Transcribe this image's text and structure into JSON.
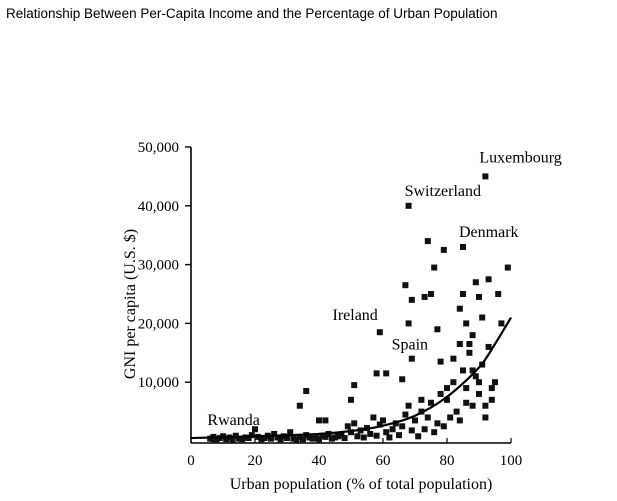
{
  "page": {
    "title": "Relationship Between Per-Capita Income and the Percentage of Urban Population"
  },
  "chart_data": {
    "type": "scatter",
    "title": "",
    "xlabel": "Urban population (% of total population)",
    "ylabel": "GNI per capita (U.S. $)",
    "xlim": [
      0,
      100
    ],
    "ylim": [
      0,
      50000
    ],
    "xticks": [
      0,
      20,
      40,
      60,
      80,
      100
    ],
    "yticks": [
      10000,
      20000,
      30000,
      40000,
      50000
    ],
    "xtick_labels": [
      "0",
      "20",
      "40",
      "60",
      "80",
      "100"
    ],
    "ytick_labels": [
      "10,000",
      "20,000",
      "30,000",
      "40,000",
      "50,000"
    ],
    "grid": false,
    "marker_color": "#111111",
    "series": [
      {
        "points": [
          [
            6,
            400
          ],
          [
            7,
            700
          ],
          [
            8,
            300
          ],
          [
            9,
            500
          ],
          [
            10,
            800
          ],
          [
            11,
            300
          ],
          [
            12,
            600
          ],
          [
            13,
            200
          ],
          [
            14,
            900
          ],
          [
            15,
            400
          ],
          [
            16,
            300
          ],
          [
            17,
            600
          ],
          [
            18,
            500
          ],
          [
            19,
            1000
          ],
          [
            20,
            2000
          ],
          [
            21,
            700
          ],
          [
            22,
            300
          ],
          [
            23,
            500
          ],
          [
            24,
            900
          ],
          [
            25,
            400
          ],
          [
            26,
            1200
          ],
          [
            27,
            600
          ],
          [
            28,
            300
          ],
          [
            29,
            800
          ],
          [
            30,
            500
          ],
          [
            31,
            1500
          ],
          [
            32,
            400
          ],
          [
            33,
            200
          ],
          [
            34,
            700
          ],
          [
            35,
            300
          ],
          [
            36,
            1000
          ],
          [
            37,
            600
          ],
          [
            38,
            400
          ],
          [
            39,
            500
          ],
          [
            40,
            300
          ],
          [
            41,
            900
          ],
          [
            42,
            700
          ],
          [
            43,
            1200
          ],
          [
            44,
            400
          ],
          [
            45,
            600
          ],
          [
            46,
            800
          ],
          [
            47,
            1100
          ],
          [
            48,
            500
          ],
          [
            49,
            2500
          ],
          [
            50,
            1500
          ],
          [
            51,
            3000
          ],
          [
            52,
            800
          ],
          [
            53,
            1800
          ],
          [
            54,
            600
          ],
          [
            55,
            2200
          ],
          [
            56,
            1200
          ],
          [
            57,
            4000
          ],
          [
            58,
            900
          ],
          [
            59,
            2800
          ],
          [
            60,
            3500
          ],
          [
            61,
            1500
          ],
          [
            62,
            600
          ],
          [
            63,
            2000
          ],
          [
            64,
            3000
          ],
          [
            65,
            1000
          ],
          [
            66,
            2500
          ],
          [
            67,
            4500
          ],
          [
            68,
            6000
          ],
          [
            69,
            1800
          ],
          [
            70,
            3500
          ],
          [
            71,
            800
          ],
          [
            72,
            5000
          ],
          [
            73,
            2000
          ],
          [
            74,
            4000
          ],
          [
            75,
            6500
          ],
          [
            76,
            1500
          ],
          [
            77,
            3000
          ],
          [
            78,
            8000
          ],
          [
            79,
            2500
          ],
          [
            80,
            7000
          ],
          [
            81,
            4000
          ],
          [
            82,
            10000
          ],
          [
            83,
            5000
          ],
          [
            84,
            3500
          ],
          [
            85,
            12000
          ],
          [
            86,
            9000
          ],
          [
            87,
            15000
          ],
          [
            88,
            6000
          ],
          [
            89,
            11000
          ],
          [
            90,
            8000
          ],
          [
            91,
            13000
          ],
          [
            92,
            4000
          ],
          [
            93,
            16000
          ],
          [
            94,
            7000
          ],
          [
            95,
            10000
          ],
          [
            34,
            6000
          ],
          [
            36,
            8500
          ],
          [
            40,
            3500
          ],
          [
            42,
            3500
          ],
          [
            51,
            9500
          ],
          [
            50,
            7000
          ],
          [
            58,
            11500
          ],
          [
            61,
            11500
          ],
          [
            66,
            10500
          ],
          [
            67,
            26500
          ],
          [
            69,
            24000
          ],
          [
            73,
            24500
          ],
          [
            75,
            25000
          ],
          [
            68,
            20000
          ],
          [
            77,
            19000
          ],
          [
            74,
            34000
          ],
          [
            76,
            29500
          ],
          [
            79,
            32500
          ],
          [
            85,
            25000
          ],
          [
            86,
            20000
          ],
          [
            87,
            16500
          ],
          [
            89,
            27000
          ],
          [
            90,
            24500
          ],
          [
            91,
            21000
          ],
          [
            93,
            27500
          ],
          [
            96,
            25000
          ],
          [
            97,
            20000
          ],
          [
            99,
            29500
          ],
          [
            84,
            22500
          ],
          [
            88,
            18000
          ],
          [
            72,
            7000
          ],
          [
            78,
            13500
          ],
          [
            80,
            9000
          ],
          [
            82,
            14000
          ],
          [
            84,
            16500
          ],
          [
            86,
            6500
          ],
          [
            88,
            12000
          ],
          [
            90,
            10000
          ],
          [
            92,
            6000
          ],
          [
            94,
            9000
          ]
        ]
      }
    ],
    "annotations": [
      {
        "label": "Luxembourg",
        "x": 92,
        "y": 45000
      },
      {
        "label": "Switzerland",
        "x": 68,
        "y": 40000
      },
      {
        "label": "Denmark",
        "x": 85,
        "y": 33000
      },
      {
        "label": "Ireland",
        "x": 59,
        "y": 18500
      },
      {
        "label": "Spain",
        "x": 69,
        "y": 14000
      },
      {
        "label": "Rwanda",
        "x": 7,
        "y": 300
      }
    ],
    "trend_curve": [
      [
        0,
        500
      ],
      [
        20,
        800
      ],
      [
        40,
        1200
      ],
      [
        50,
        1700
      ],
      [
        60,
        2600
      ],
      [
        70,
        4300
      ],
      [
        80,
        7500
      ],
      [
        90,
        12500
      ],
      [
        95,
        16500
      ],
      [
        100,
        21000
      ]
    ]
  }
}
